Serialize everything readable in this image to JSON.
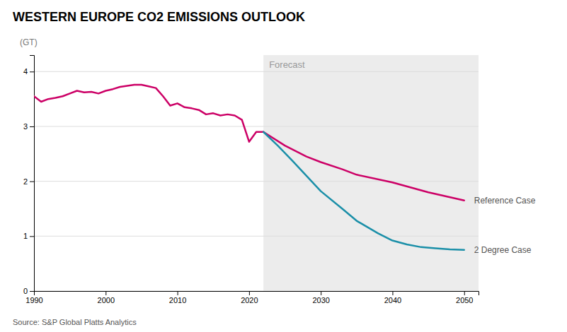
{
  "chart_data": {
    "type": "line",
    "title": "WESTERN EUROPE CO2 EMISSIONS OUTLOOK",
    "y_label": "(GT)",
    "source": "Source: S&P Global Platts Analytics",
    "xlim": [
      1990,
      2052
    ],
    "ylim": [
      0,
      4.3
    ],
    "xticks": [
      1990,
      2000,
      2010,
      2020,
      2030,
      2040,
      2050
    ],
    "yticks": [
      0,
      1,
      2,
      3,
      4
    ],
    "grid": true,
    "annotations": [
      {
        "text": "Forecast",
        "x": 2022
      }
    ],
    "series": [
      {
        "color": "#cc0066",
        "x": [
          1990,
          1991,
          1992,
          1993,
          1994,
          1995,
          1996,
          1997,
          1998,
          1999,
          2000,
          2001,
          2002,
          2003,
          2004,
          2005,
          2006,
          2007,
          2008,
          2009,
          2010,
          2011,
          2012,
          2013,
          2014,
          2015,
          2016,
          2017,
          2018,
          2019,
          2020,
          2021,
          2022
        ],
        "values": [
          3.55,
          3.45,
          3.5,
          3.52,
          3.55,
          3.6,
          3.65,
          3.62,
          3.63,
          3.6,
          3.65,
          3.68,
          3.72,
          3.74,
          3.76,
          3.76,
          3.73,
          3.7,
          3.55,
          3.38,
          3.42,
          3.35,
          3.33,
          3.3,
          3.22,
          3.24,
          3.2,
          3.22,
          3.2,
          3.12,
          2.72,
          2.9,
          2.9
        ]
      },
      {
        "name": "Reference Case",
        "color": "#cc0066",
        "x": [
          2022,
          2025,
          2028,
          2030,
          2033,
          2035,
          2040,
          2045,
          2050
        ],
        "values": [
          2.9,
          2.65,
          2.45,
          2.35,
          2.22,
          2.12,
          1.98,
          1.8,
          1.65
        ]
      },
      {
        "name": "2 Degree Case",
        "color": "#1a8fa8",
        "x": [
          2022,
          2024,
          2026,
          2028,
          2030,
          2033,
          2035,
          2038,
          2040,
          2042,
          2044,
          2046,
          2048,
          2050
        ],
        "values": [
          2.9,
          2.65,
          2.38,
          2.1,
          1.82,
          1.5,
          1.28,
          1.05,
          0.92,
          0.85,
          0.8,
          0.78,
          0.76,
          0.75
        ]
      }
    ]
  }
}
